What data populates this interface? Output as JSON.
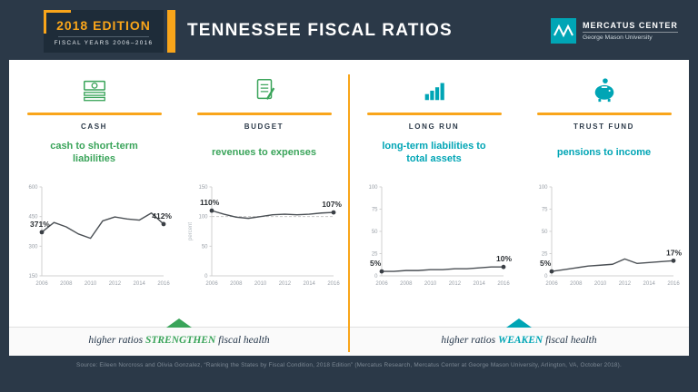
{
  "colors": {
    "navy": "#2b3948",
    "yellow": "#f9a51a",
    "green": "#3aa45a",
    "teal": "#00a5b5",
    "chart_line": "#4a4f54"
  },
  "header": {
    "edition": "2018 EDITION",
    "fiscal_years": "FISCAL YEARS 2006–2016",
    "title": "TENNESSEE FISCAL RATIOS",
    "logo_name": "MERCATUS CENTER",
    "logo_sub": "George Mason University"
  },
  "columns": [
    {
      "category": "CASH",
      "metric": "cash to short-term liabilities",
      "accent": "#3aa45a",
      "icon": "cash-icon"
    },
    {
      "category": "BUDGET",
      "metric": "revenues to expenses",
      "accent": "#3aa45a",
      "icon": "budget-icon"
    },
    {
      "category": "LONG RUN",
      "metric": "long-term liabilities to total assets",
      "accent": "#00a5b5",
      "icon": "bar-chart-icon"
    },
    {
      "category": "TRUST FUND",
      "metric": "pensions to income",
      "accent": "#00a5b5",
      "icon": "piggy-bank-icon"
    }
  ],
  "chart_data": [
    {
      "type": "line",
      "title": "cash to short-term liabilities",
      "x": [
        2006,
        2007,
        2008,
        2009,
        2010,
        2011,
        2012,
        2013,
        2014,
        2015,
        2016
      ],
      "values": [
        371,
        420,
        398,
        362,
        340,
        428,
        448,
        438,
        432,
        468,
        412
      ],
      "ymin": 150,
      "ymax": 600,
      "yticks": [
        150,
        300,
        450,
        600
      ],
      "xticks": [
        2006,
        2008,
        2010,
        2012,
        2014,
        2016
      ],
      "start_label": "371%",
      "end_label": "412%",
      "ylabel": "",
      "refline": null
    },
    {
      "type": "line",
      "title": "revenues to expenses",
      "x": [
        2006,
        2007,
        2008,
        2009,
        2010,
        2011,
        2012,
        2013,
        2014,
        2015,
        2016
      ],
      "values": [
        110,
        104,
        99,
        97,
        100,
        103,
        104,
        103,
        104,
        106,
        107
      ],
      "ymin": 0,
      "ymax": 150,
      "yticks": [
        0,
        50,
        100,
        150
      ],
      "xticks": [
        2006,
        2008,
        2010,
        2012,
        2014,
        2016
      ],
      "start_label": "110%",
      "end_label": "107%",
      "ylabel": "percent",
      "refline": 100
    },
    {
      "type": "line",
      "title": "long-term liabilities to total assets",
      "x": [
        2006,
        2007,
        2008,
        2009,
        2010,
        2011,
        2012,
        2013,
        2014,
        2015,
        2016
      ],
      "values": [
        5,
        5,
        6,
        6,
        7,
        7,
        8,
        8,
        9,
        10,
        10
      ],
      "ymin": 0,
      "ymax": 100,
      "yticks": [
        0,
        25,
        50,
        75,
        100
      ],
      "xticks": [
        2006,
        2008,
        2010,
        2012,
        2014,
        2016
      ],
      "start_label": "5%",
      "end_label": "10%",
      "ylabel": "",
      "refline": null
    },
    {
      "type": "line",
      "title": "pensions to income",
      "x": [
        2006,
        2007,
        2008,
        2009,
        2010,
        2011,
        2012,
        2013,
        2014,
        2015,
        2016
      ],
      "values": [
        5,
        7,
        9,
        11,
        12,
        13,
        19,
        14,
        15,
        16,
        17
      ],
      "ymin": 0,
      "ymax": 100,
      "yticks": [
        0,
        25,
        50,
        75,
        100
      ],
      "xticks": [
        2006,
        2008,
        2010,
        2012,
        2014,
        2016
      ],
      "start_label": "5%",
      "end_label": "17%",
      "ylabel": "",
      "refline": null
    }
  ],
  "footnotes": {
    "left": {
      "prefix": "higher ratios ",
      "emph": "STRENGTHEN",
      "suffix": " fiscal health",
      "color": "#3aa45a"
    },
    "right": {
      "prefix": "higher ratios ",
      "emph": "WEAKEN",
      "suffix": " fiscal health",
      "color": "#00a5b5"
    }
  },
  "source": "Source: Eileen Norcross and Olivia Gonzalez, “Ranking the States by Fiscal Condition, 2018 Edition” (Mercatus Research, Mercatus Center at George Mason University, Arlington, VA, October 2018)."
}
